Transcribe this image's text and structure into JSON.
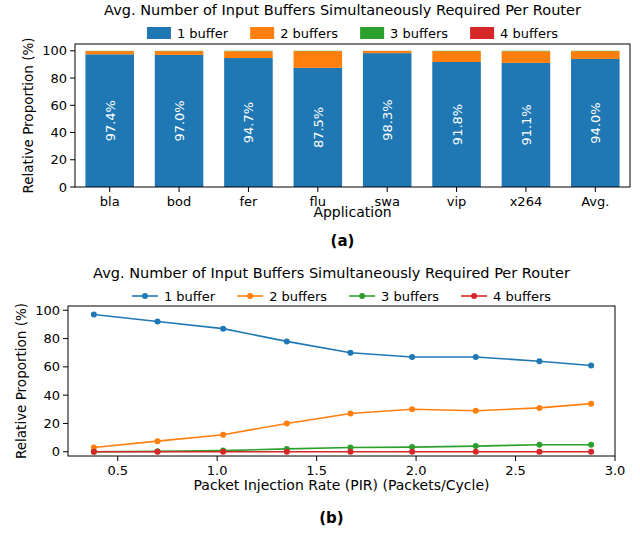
{
  "chart_data": [
    {
      "type": "bar",
      "stacked": true,
      "title": "Avg. Number of Input Buffers Simultaneously Required Per Router",
      "x_label": "Application",
      "y_label": "Relative Proportion (%)",
      "caption": "(a)",
      "legend": "top",
      "grid": false,
      "categories": [
        "bla",
        "bod",
        "fer",
        "flu",
        "swa",
        "vip",
        "x264",
        "Avg."
      ],
      "series": [
        {
          "name": "1 buffer",
          "color": "#1f77b4",
          "data_labels": true,
          "values": [
            97.4,
            97.0,
            94.7,
            87.5,
            98.3,
            91.8,
            91.1,
            94.0
          ],
          "value_labels": [
            "97.4%",
            "97.0%",
            "94.7%",
            "87.5%",
            "98.3%",
            "91.8%",
            "91.1%",
            "94.0%"
          ]
        },
        {
          "name": "2 buffers",
          "color": "#ff7f0e",
          "values": [
            2.4,
            2.8,
            5.0,
            12.3,
            1.6,
            8.0,
            8.6,
            5.8
          ]
        },
        {
          "name": "3 buffers",
          "color": "#2ca02c",
          "values": [
            0.2,
            0.2,
            0.3,
            0.2,
            0.1,
            0.2,
            0.3,
            0.2
          ]
        },
        {
          "name": "4 buffers",
          "color": "#d62728",
          "values": [
            0,
            0,
            0,
            0,
            0,
            0,
            0,
            0
          ]
        }
      ],
      "ylim": [
        0,
        105
      ],
      "yticks": [
        0,
        20,
        40,
        60,
        80,
        100
      ]
    },
    {
      "type": "line",
      "title": "Avg. Number of Input Buffers Simultaneously Required Per Router",
      "x_label": "Packet Injection Rate (PIR) (Packets/Cycle)",
      "y_label": "Relative Proportion (%)",
      "caption": "(b)",
      "legend": "top",
      "grid": false,
      "marker": "circle",
      "x": [
        0.38,
        0.7,
        1.03,
        1.35,
        1.67,
        1.98,
        2.3,
        2.62,
        2.88
      ],
      "series": [
        {
          "name": "1 buffer",
          "color": "#1f77b4",
          "values": [
            97,
            92,
            87,
            78,
            70,
            67,
            67,
            64,
            61
          ]
        },
        {
          "name": "2 buffers",
          "color": "#ff7f0e",
          "values": [
            3,
            7.5,
            12,
            20,
            27,
            30,
            29,
            31,
            34
          ]
        },
        {
          "name": "3 buffers",
          "color": "#2ca02c",
          "values": [
            0,
            0.3,
            0.8,
            2,
            3,
            3.3,
            4,
            5,
            5
          ]
        },
        {
          "name": "4 buffers",
          "color": "#d62728",
          "values": [
            0,
            0,
            0,
            0,
            0,
            0,
            0,
            0,
            0
          ]
        }
      ],
      "xlim": [
        0.25,
        3.0
      ],
      "xticks": [
        0.5,
        {
          "value": 1,
          "label": "1.0"
        },
        1.5,
        {
          "value": 2,
          "label": "2.0"
        },
        2.5,
        {
          "value": 3,
          "label": "3.0"
        }
      ],
      "ylim": [
        -3,
        103
      ],
      "yticks": [
        0,
        20,
        40,
        60,
        80,
        100
      ]
    }
  ]
}
